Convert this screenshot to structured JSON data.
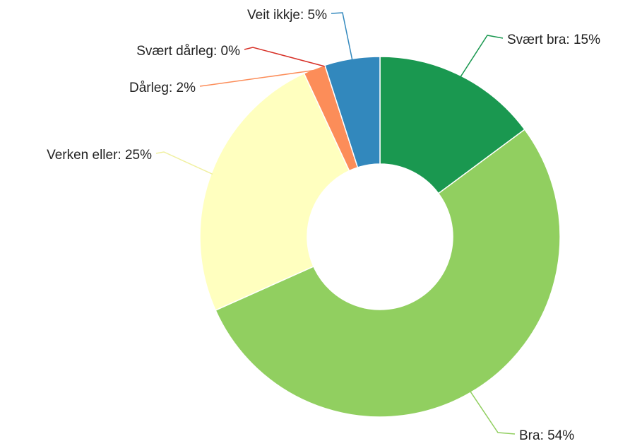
{
  "chart_data": {
    "type": "donut",
    "values": [
      15,
      54,
      25,
      2,
      0,
      5
    ],
    "value_labels": [
      "Svært bra: 15%",
      "Bra: 54%",
      "Verken eller: 25%",
      "Dårleg: 2%",
      "Svært dårleg: 0%",
      "Veit ikkje: 5%"
    ],
    "colors": [
      "#1a9850",
      "#91cf60",
      "#ffffbf",
      "#fc8d59",
      "#d73027",
      "#3288bd"
    ]
  }
}
